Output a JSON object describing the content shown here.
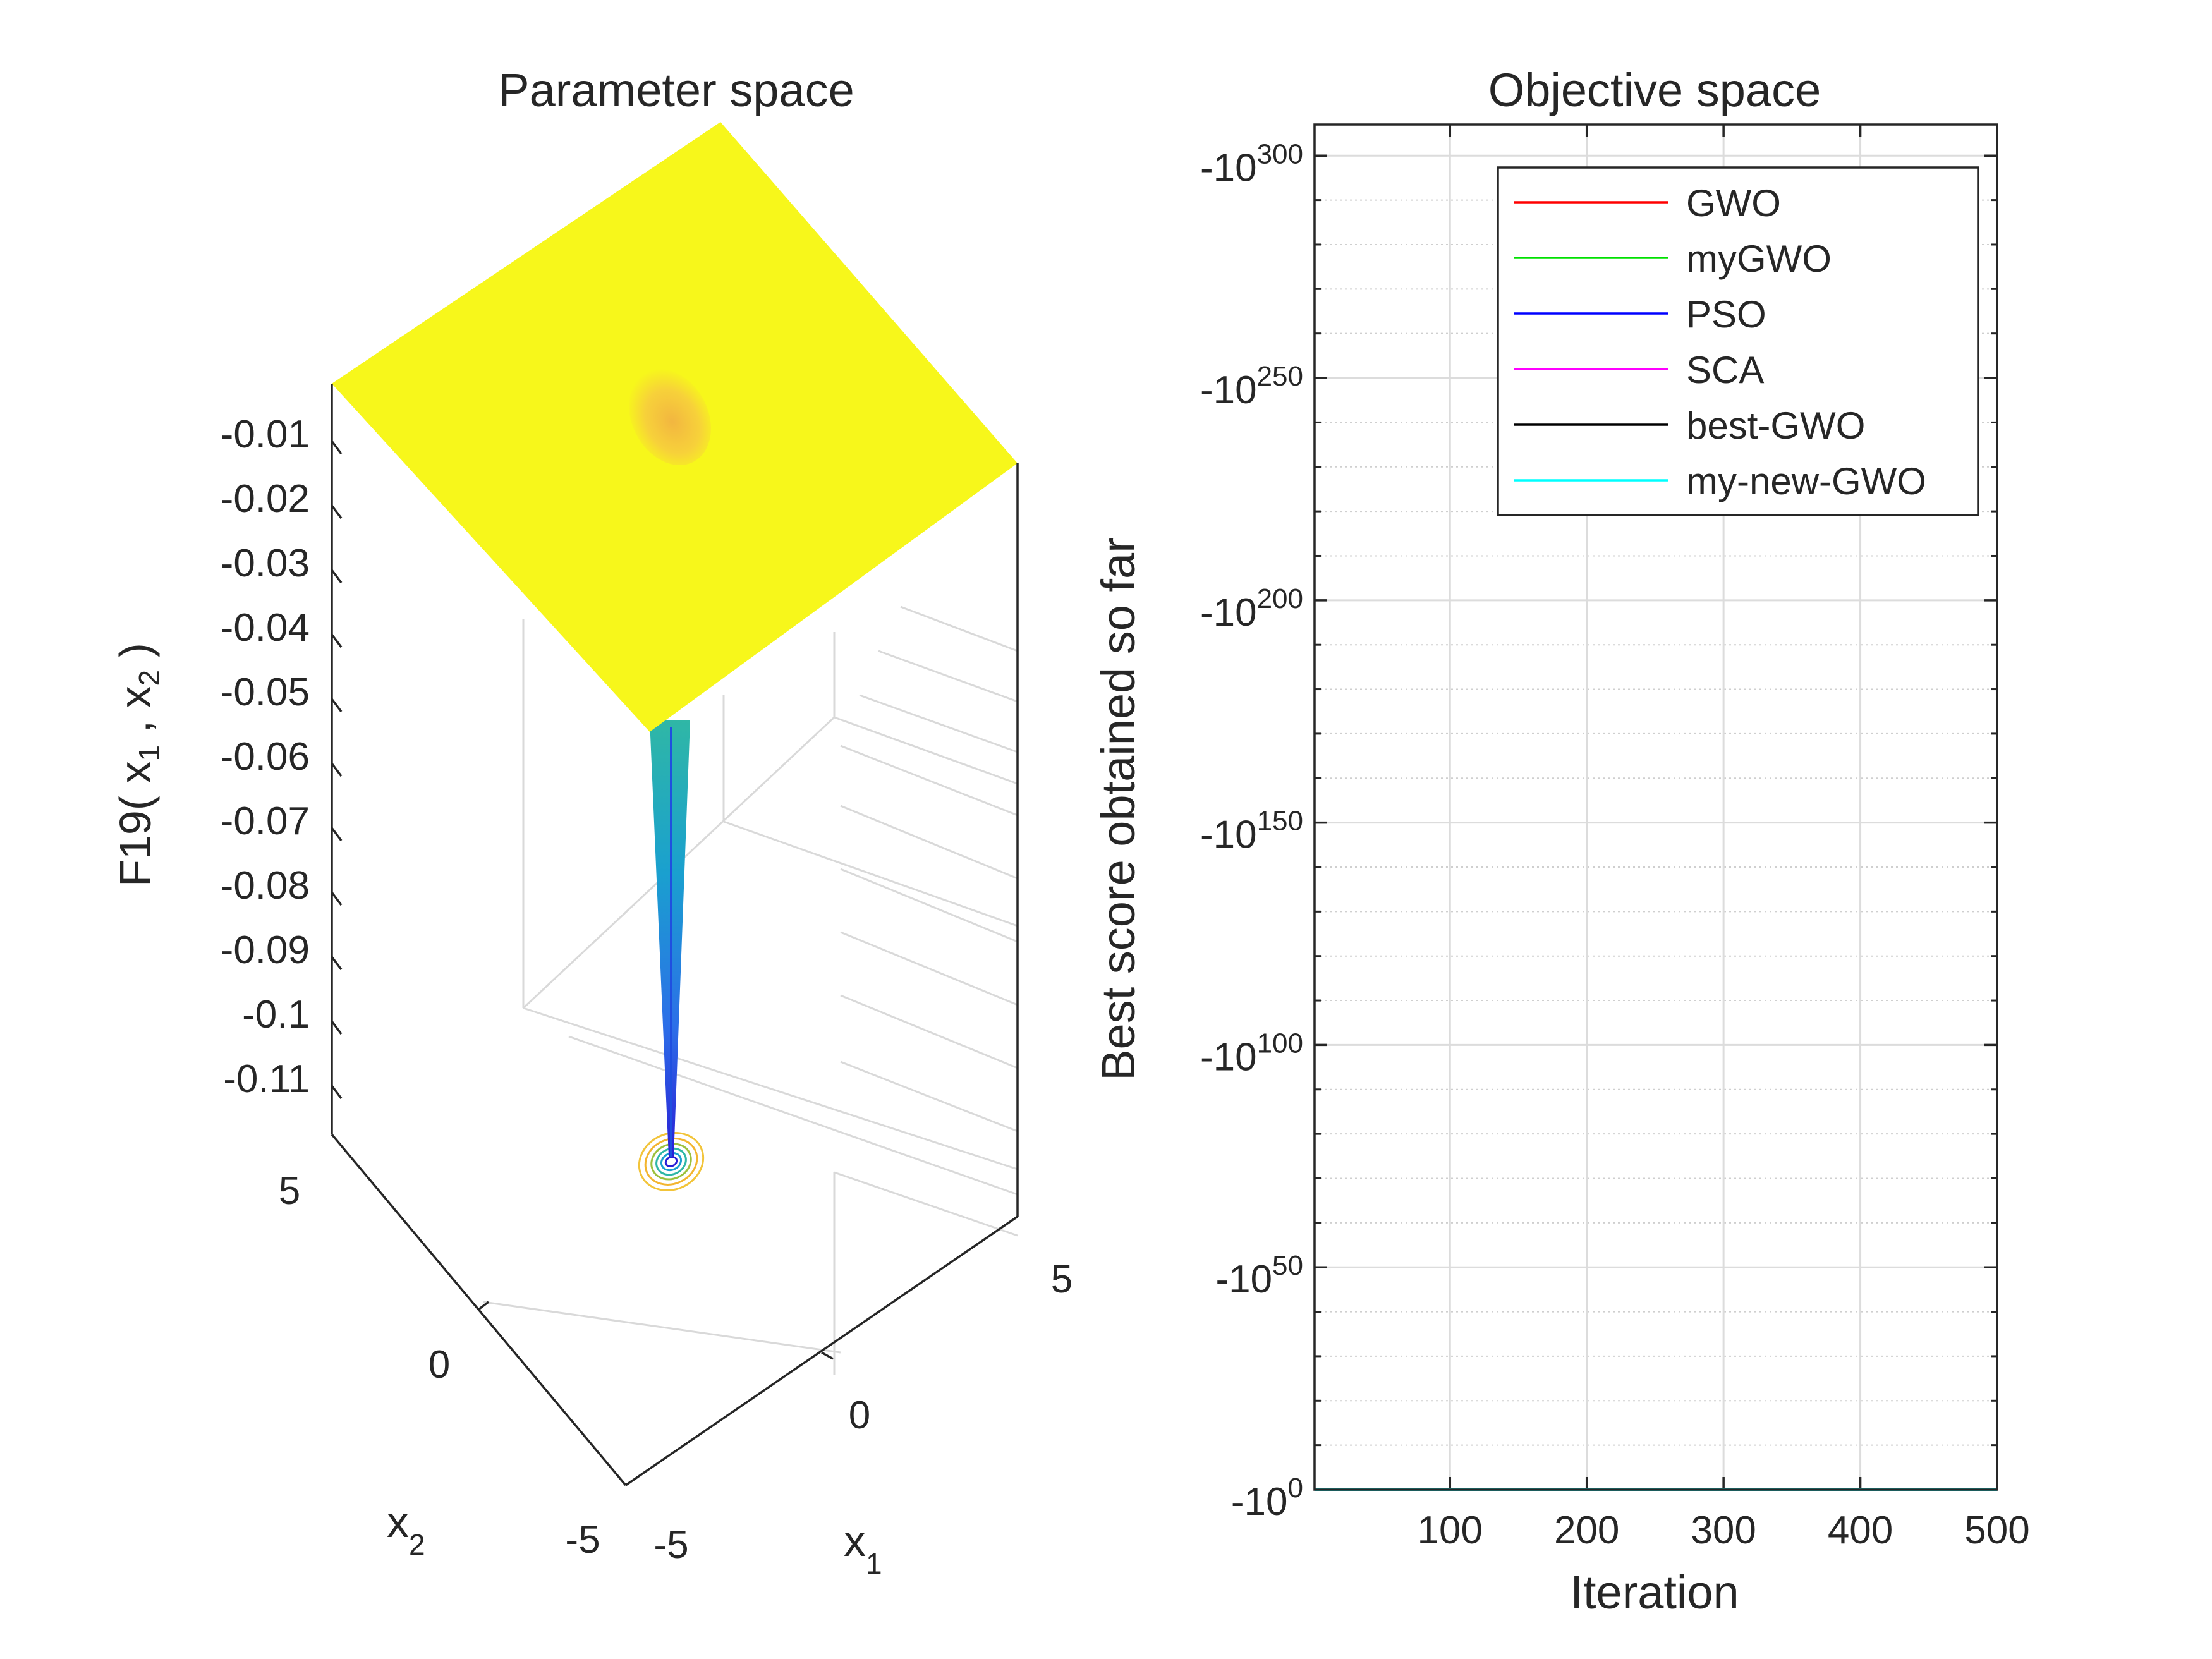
{
  "colors": {
    "GWO": "#ff0000",
    "myGWO": "#00e000",
    "PSO": "#0000ff",
    "SCA": "#ff00ff",
    "best-GWO": "#000000",
    "my-new-GWO": "#00ffff",
    "surface_top": "#f7f71b",
    "grid": "#d9d9d9"
  },
  "chart_data": [
    {
      "type": "surface",
      "title": "Parameter space",
      "xlabel": "x_1",
      "ylabel": "x_2",
      "zlabel": "F19( x_1 , x_2 )",
      "xlim": [
        -5,
        5
      ],
      "ylim": [
        -5,
        5
      ],
      "x_ticks": [
        "-5",
        "0",
        "5"
      ],
      "y_ticks": [
        "-5",
        "0",
        "5"
      ],
      "z_ticks": [
        "-0.01",
        "-0.02",
        "-0.03",
        "-0.04",
        "-0.05",
        "-0.06",
        "-0.07",
        "-0.08",
        "-0.09",
        "-0.1",
        "-0.11"
      ],
      "zlim": [
        -0.115,
        0
      ],
      "surface_plateau_z": 0,
      "minimum": {
        "x1": 0,
        "x2": 0,
        "z": -0.115
      },
      "colormap": "parula",
      "contours_on_floor": true
    },
    {
      "type": "line",
      "title": "Objective space",
      "xlabel": "Iteration",
      "ylabel": "Best score obtained so far",
      "xlim": [
        1,
        500
      ],
      "x_ticks": [
        "100",
        "200",
        "300",
        "400",
        "500"
      ],
      "y_scale": "log (negative)",
      "y_ticks": [
        {
          "base": "-10",
          "exp": "300"
        },
        {
          "base": "-10",
          "exp": "250"
        },
        {
          "base": "-10",
          "exp": "200"
        },
        {
          "base": "-10",
          "exp": "150"
        },
        {
          "base": "-10",
          "exp": "100"
        },
        {
          "base": "-10",
          "exp": "50"
        },
        {
          "base": "-10",
          "exp": "0"
        }
      ],
      "ylim_exponent": [
        0,
        307
      ],
      "grid": true,
      "legend_placement": "top-right",
      "series": [
        {
          "name": "GWO",
          "x": [
            1,
            500
          ],
          "y_exponent": [
            0,
            0
          ]
        },
        {
          "name": "myGWO",
          "x": [
            1,
            500
          ],
          "y_exponent": [
            0,
            0
          ]
        },
        {
          "name": "PSO",
          "x": [
            1,
            500
          ],
          "y_exponent": [
            0,
            0
          ]
        },
        {
          "name": "SCA",
          "x": [
            1,
            500
          ],
          "y_exponent": [
            0,
            0
          ]
        },
        {
          "name": "best-GWO",
          "x": [
            1,
            500
          ],
          "y_exponent": [
            0,
            0
          ]
        },
        {
          "name": "my-new-GWO",
          "x": [
            1,
            500
          ],
          "y_exponent": [
            0,
            0
          ]
        }
      ]
    }
  ]
}
